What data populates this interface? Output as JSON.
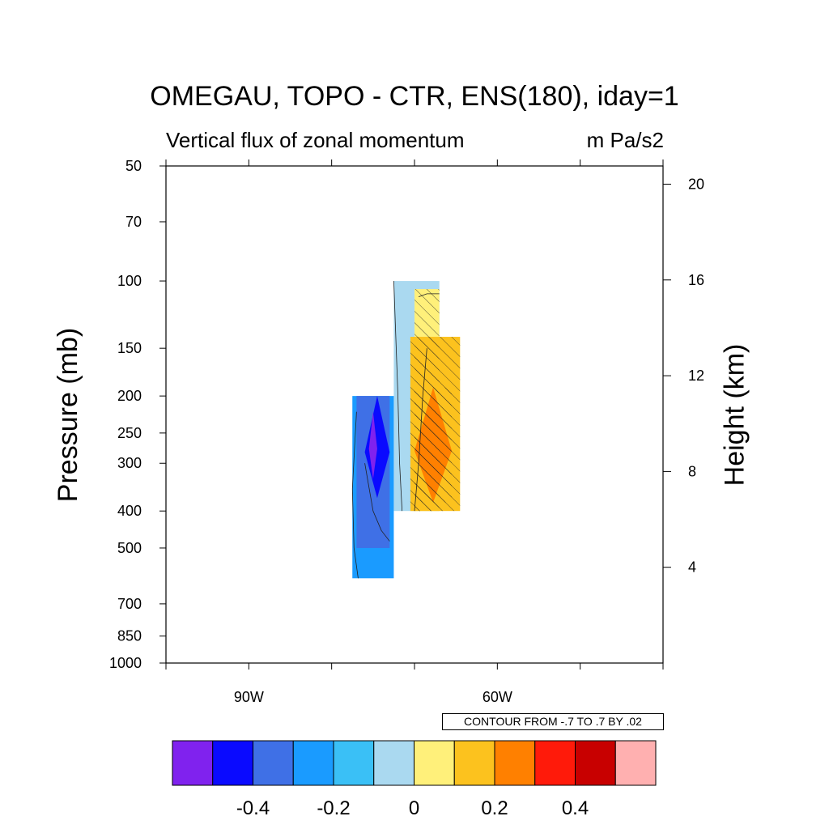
{
  "chart_data": {
    "type": "heatmap",
    "title": "OMEGAU, TOPO - CTR, ENS(180), iday=1",
    "subtitle_left": "Vertical flux of zonal momentum",
    "subtitle_right": "m Pa/s2",
    "ylabel": "Pressure (mb)",
    "ylabel_right": "Height (km)",
    "contour_note": "CONTOUR FROM -.7 TO .7 BY .02",
    "x_axis": {
      "ticks": [
        {
          "lon": -100,
          "label": ""
        },
        {
          "lon": -90,
          "label": "90W"
        },
        {
          "lon": -80,
          "label": ""
        },
        {
          "lon": -70,
          "label": ""
        },
        {
          "lon": -60,
          "label": "60W"
        },
        {
          "lon": -50,
          "label": ""
        },
        {
          "lon": -40,
          "label": ""
        }
      ],
      "range": [
        -100,
        -40
      ]
    },
    "y_axis": {
      "scale": "log",
      "range_mb": [
        1000,
        50
      ],
      "ticks": [
        "50",
        "70",
        "100",
        "150",
        "200",
        "250",
        "300",
        "400",
        "500",
        "700",
        "850",
        "1000"
      ]
    },
    "y_axis_right": {
      "ticks": [
        "20",
        "16",
        "12",
        "8",
        "4"
      ]
    },
    "colorbar": {
      "colors": [
        "#8022ee",
        "#0a0aff",
        "#3f70e6",
        "#1a9bff",
        "#3ac0f6",
        "#aad9f0",
        "#fff07a",
        "#fcc21e",
        "#ff8000",
        "#ff1a0a",
        "#c80000",
        "#ffb0b0"
      ],
      "labels": [
        {
          "value": "-0.4",
          "after_box": 1
        },
        {
          "value": "-0.2",
          "after_box": 3
        },
        {
          "value": "0",
          "after_box": 5
        },
        {
          "value": "0.2",
          "after_box": 7
        },
        {
          "value": "0.4",
          "after_box": 9
        }
      ]
    },
    "field_regions": [
      {
        "name": "weak-negative-upper",
        "level": -0.05,
        "color": "#aad9f0",
        "lon": [
          -72.5,
          -67
        ],
        "p": [
          100,
          400
        ]
      },
      {
        "name": "negative-column",
        "level": -0.15,
        "color": "#1a9bff",
        "lon": [
          -77.5,
          -72.5
        ],
        "p": [
          200,
          600
        ]
      },
      {
        "name": "negative-mid",
        "level": -0.25,
        "color": "#3f70e6",
        "lon": [
          -77,
          -73
        ],
        "p": [
          200,
          500
        ]
      },
      {
        "name": "negative-core",
        "level": -0.35,
        "color": "#0a0aff",
        "lon": [
          -76,
          -73
        ],
        "p": [
          200,
          370
        ]
      },
      {
        "name": "negative-peak",
        "level": -0.45,
        "color": "#8022ee",
        "lon": [
          -75.5,
          -74.5
        ],
        "p": [
          220,
          330
        ]
      },
      {
        "name": "positive-upper",
        "level": 0.05,
        "color": "#fff07a",
        "lon": [
          -70,
          -67
        ],
        "p": [
          105,
          400
        ]
      },
      {
        "name": "positive-column",
        "level": 0.15,
        "color": "#fcc21e",
        "lon": [
          -70.5,
          -64.5
        ],
        "p": [
          140,
          400
        ]
      },
      {
        "name": "positive-core",
        "level": 0.25,
        "color": "#ff8000",
        "lon": [
          -70,
          -65.5
        ],
        "p": [
          190,
          380
        ]
      }
    ]
  }
}
